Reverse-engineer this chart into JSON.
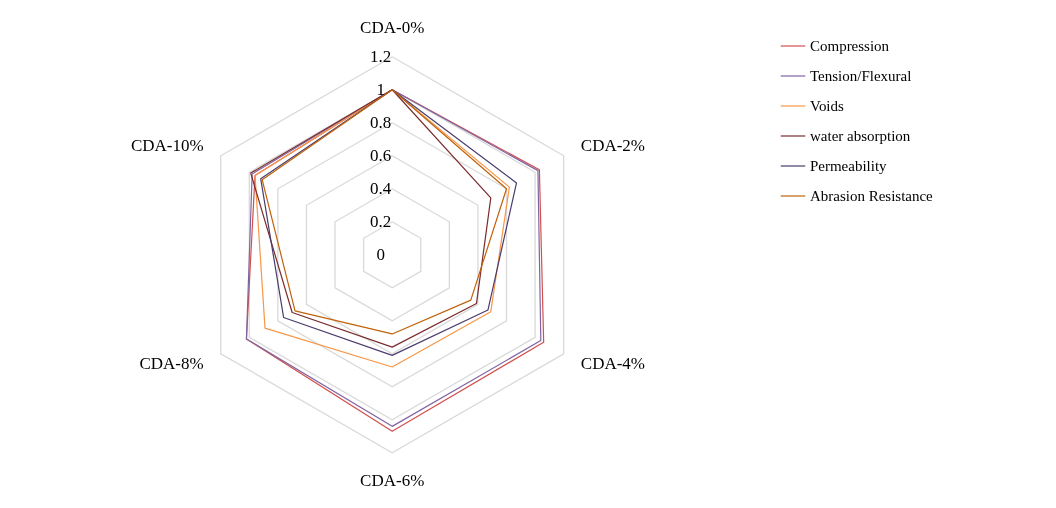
{
  "chart_data": {
    "type": "radar",
    "categories": [
      "CDA-0%",
      "CDA-2%",
      "CDA-4%",
      "CDA-6%",
      "CDA-8%",
      "CDA-10%"
    ],
    "ylim": [
      0,
      1.2
    ],
    "yticks": [
      {
        "value": 0,
        "label": "0"
      },
      0.2,
      0.4,
      0.6,
      0.8,
      1,
      1.2
    ],
    "grid": true,
    "legend": "right",
    "series": [
      {
        "name": "Compression",
        "color": "#d0504d",
        "values": [
          1,
          1.03,
          1.06,
          1.07,
          1.02,
          0.96
        ]
      },
      {
        "name": "Tension/Flexural",
        "color": "#8064a2",
        "values": [
          1,
          1.02,
          1.04,
          1.04,
          1.02,
          0.98
        ]
      },
      {
        "name": "Voids",
        "color": "#f79646",
        "values": [
          1,
          0.82,
          0.69,
          0.68,
          0.89,
          0.96
        ]
      },
      {
        "name": "water absorption",
        "color": "#7b2c2c",
        "values": [
          1,
          0.69,
          0.59,
          0.56,
          0.7,
          0.99
        ]
      },
      {
        "name": "Permeability",
        "color": "#4b3c6e",
        "values": [
          1,
          0.87,
          0.67,
          0.61,
          0.76,
          0.92
        ]
      },
      {
        "name": "Abrasion Resistance",
        "color": "#c0620a",
        "values": [
          1,
          0.8,
          0.55,
          0.48,
          0.68,
          0.91
        ]
      }
    ]
  }
}
